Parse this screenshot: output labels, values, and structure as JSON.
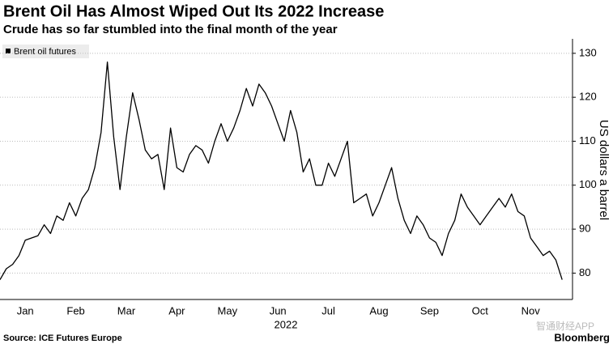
{
  "chart_data": {
    "type": "line",
    "title": "Brent Oil Has Almost Wiped Out Its 2022 Increase",
    "subtitle": "Crude has so far stumbled into the final month of the year",
    "xlabel": "2022",
    "ylabel": "US dollars a barrel",
    "source": "Source: ICE Futures Europe",
    "brand": "Bloomberg",
    "watermark": "智通财经APP",
    "categories": [
      null,
      null,
      null,
      null,
      "Jan",
      null,
      null,
      null,
      null,
      null,
      null,
      null,
      "Feb",
      null,
      null,
      null,
      null,
      null,
      null,
      null,
      "Mar",
      null,
      null,
      null,
      null,
      null,
      null,
      null,
      "Apr",
      null,
      null,
      null,
      null,
      null,
      null,
      null,
      "May",
      null,
      null,
      null,
      null,
      null,
      null,
      null,
      "Jun",
      null,
      null,
      null,
      null,
      null,
      null,
      null,
      "Jul",
      null,
      null,
      null,
      null,
      null,
      null,
      null,
      "Aug",
      null,
      null,
      null,
      null,
      null,
      null,
      null,
      "Sep",
      null,
      null,
      null,
      null,
      null,
      null,
      null,
      "Oct",
      null,
      null,
      null,
      null,
      null,
      null,
      null,
      "Nov",
      null,
      null,
      null,
      null,
      null
    ],
    "series": [
      {
        "name": "Brent oil futures",
        "color": "#000000",
        "values": [
          78.5,
          81,
          82,
          84,
          87.5,
          88,
          88.5,
          91,
          89,
          93,
          92,
          96,
          93,
          97,
          99,
          104,
          112,
          128,
          111,
          99,
          111,
          121,
          115,
          108,
          106,
          107,
          99,
          113,
          104,
          103,
          107,
          109,
          108,
          105,
          110,
          114,
          110,
          113,
          117,
          122,
          118,
          123,
          121,
          118,
          114,
          110,
          117,
          112,
          103,
          106,
          100,
          100,
          105,
          102,
          106,
          110,
          96,
          97,
          98,
          93,
          96,
          100,
          104,
          97,
          92,
          89,
          93,
          91,
          88,
          87,
          84,
          89,
          92,
          98,
          95,
          93,
          91,
          93,
          95,
          97,
          95,
          98,
          94,
          93,
          88,
          86,
          84,
          85,
          83,
          78.5
        ]
      }
    ],
    "ylim": [
      74,
      132
    ],
    "yticks": [
      80,
      90,
      100,
      110,
      120,
      130
    ],
    "grid": true
  }
}
